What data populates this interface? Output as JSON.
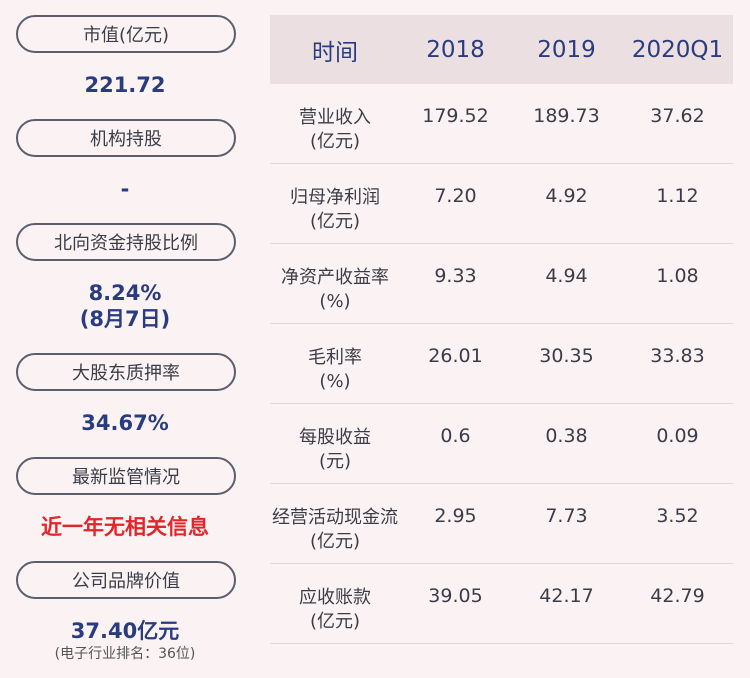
{
  "left": {
    "items": [
      {
        "label": "市值(亿元)",
        "value": "221.72"
      },
      {
        "label": "机构持股",
        "value": "-"
      },
      {
        "label": "北向资金持股比例",
        "value": "8.24%",
        "value2": "(8月7日)"
      },
      {
        "label": "大股东质押率",
        "value": "34.67%"
      },
      {
        "label": "最新监管情况",
        "value": "近一年无相关信息"
      },
      {
        "label": "公司品牌价值",
        "value": "37.40亿元",
        "note": "(电子行业排名：36位)"
      }
    ]
  },
  "table": {
    "headers": [
      "时间",
      "2018",
      "2019",
      "2020Q1"
    ],
    "rows": [
      {
        "name": "营业收入",
        "unit": "(亿元)",
        "values": [
          "179.52",
          "189.73",
          "37.62"
        ]
      },
      {
        "name": "归母净利润",
        "unit": "(亿元)",
        "values": [
          "7.20",
          "4.92",
          "1.12"
        ]
      },
      {
        "name": "净资产收益率",
        "unit": "(%)",
        "values": [
          "9.33",
          "4.94",
          "1.08"
        ]
      },
      {
        "name": "毛利率",
        "unit": "(%)",
        "values": [
          "26.01",
          "30.35",
          "33.83"
        ]
      },
      {
        "name": "每股收益",
        "unit": "(元)",
        "values": [
          "0.6",
          "0.38",
          "0.09"
        ]
      },
      {
        "name": "经营活动现金流",
        "unit": "(亿元)",
        "values": [
          "2.95",
          "7.73",
          "3.52"
        ]
      },
      {
        "name": "应收账款",
        "unit": "(亿元)",
        "values": [
          "39.05",
          "42.17",
          "42.79"
        ]
      }
    ]
  }
}
